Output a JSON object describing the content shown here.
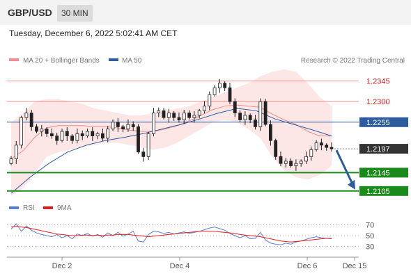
{
  "header": {
    "pair": "GBP/USD",
    "timeframe": "30 MIN"
  },
  "timestamp": "Tuesday, December 6, 2022 5:02:41 AM CET",
  "legend": {
    "bb": "MA 20 + Bollinger Bands",
    "ma50": "MA 50",
    "rsi": "RSI",
    "ma9": "9MA"
  },
  "credit": "Research © 2022 Trading Central",
  "colors": {
    "bb": "#f28b8b",
    "ma50": "#2c5c9e",
    "support": "#1a8a1a",
    "arrow": "#2c5c9e",
    "candle": "#222222",
    "rsi": "#5b7fd8",
    "ma9": "#e02020"
  },
  "chart_data": {
    "type": "candlestick",
    "instrument": "GBP/USD",
    "interval": "30 MIN",
    "price_axis": {
      "range": [
        1.2085,
        1.2385
      ]
    },
    "x_ticks": [
      "Dec 2",
      "Dec 4",
      "Dec 6",
      "Dec 15"
    ],
    "levels": [
      {
        "label": "1.2345",
        "value": 1.2345,
        "kind": "resistance"
      },
      {
        "label": "1.2300",
        "value": 1.23,
        "kind": "resistance"
      },
      {
        "label": "1.2255",
        "value": 1.2255,
        "kind": "pivot"
      },
      {
        "label": "1.2197",
        "value": 1.2197,
        "kind": "last"
      },
      {
        "label": "1.2145",
        "value": 1.2145,
        "kind": "support"
      },
      {
        "label": "1.2105",
        "value": 1.2105,
        "kind": "support"
      }
    ],
    "close": [
      1.2175,
      1.2205,
      1.2265,
      1.2275,
      1.2245,
      1.2235,
      1.224,
      1.223,
      1.2225,
      1.2215,
      1.2235,
      1.2225,
      1.2215,
      1.223,
      1.2225,
      1.2235,
      1.2225,
      1.223,
      1.222,
      1.224,
      1.2255,
      1.2245,
      1.224,
      1.225,
      1.2245,
      1.219,
      1.218,
      1.223,
      1.2275,
      1.228,
      1.2265,
      1.2275,
      1.2265,
      1.226,
      1.2275,
      1.2265,
      1.227,
      1.228,
      1.229,
      1.2315,
      1.233,
      1.234,
      1.233,
      1.23,
      1.2275,
      1.226,
      1.227,
      1.226,
      1.2245,
      1.23,
      1.225,
      1.2215,
      1.218,
      1.2165,
      1.217,
      1.216,
      1.2165,
      1.217,
      1.218,
      1.2195,
      1.221,
      1.2205,
      1.22,
      1.2197
    ],
    "bb_upper": [
      1.2255,
      1.2275,
      1.23,
      1.2305,
      1.2305,
      1.23,
      1.2295,
      1.2285,
      1.228,
      1.2275,
      1.227,
      1.227,
      1.2275,
      1.228,
      1.2285,
      1.229,
      1.23,
      1.231,
      1.232,
      1.233,
      1.234,
      1.2355,
      1.2365,
      1.237,
      1.2365,
      1.234,
      1.231,
      1.229
    ],
    "bb_lower": [
      1.2095,
      1.211,
      1.2145,
      1.218,
      1.219,
      1.2195,
      1.22,
      1.2205,
      1.221,
      1.221,
      1.2205,
      1.22,
      1.2195,
      1.22,
      1.221,
      1.2225,
      1.224,
      1.2255,
      1.226,
      1.2255,
      1.224,
      1.222,
      1.218,
      1.215,
      1.2135,
      1.213,
      1.214,
      1.216
    ],
    "ma50": [
      1.21,
      1.2135,
      1.2165,
      1.219,
      1.2205,
      1.2215,
      1.2222,
      1.223,
      1.224,
      1.225,
      1.2262,
      1.2275,
      1.2285,
      1.228,
      1.2262,
      1.225,
      1.2238,
      1.2225
    ],
    "rsi": [
      62,
      72,
      58,
      68,
      60,
      55,
      52,
      50,
      48,
      52,
      46,
      50,
      44,
      53,
      50,
      54,
      49,
      52,
      47,
      55,
      50,
      56,
      49,
      53,
      58,
      40,
      38,
      52,
      58,
      57,
      54,
      56,
      53,
      55,
      57,
      54,
      56,
      58,
      61,
      64,
      66,
      63,
      60,
      54,
      50,
      46,
      50,
      44,
      45,
      56,
      42,
      36,
      34,
      33,
      36,
      34,
      38,
      40,
      43,
      46,
      48,
      46,
      45,
      44
    ],
    "ma9": [
      66,
      67,
      66,
      65,
      63,
      61,
      59,
      57,
      55,
      53,
      52,
      51,
      50,
      50,
      51,
      51,
      50,
      51,
      50,
      51,
      51,
      52,
      52,
      52,
      51,
      50,
      49,
      48,
      49,
      50,
      51,
      52,
      53,
      54,
      55,
      56,
      57,
      58,
      58,
      58,
      58,
      57,
      56,
      55,
      54,
      52,
      51,
      50,
      49,
      48,
      46,
      44,
      42,
      40,
      39,
      38,
      39,
      40,
      41,
      42,
      43,
      44,
      45,
      45
    ],
    "rsi_axis": {
      "range": [
        10,
        90
      ],
      "ticks": [
        "70",
        "50",
        "30"
      ]
    }
  }
}
